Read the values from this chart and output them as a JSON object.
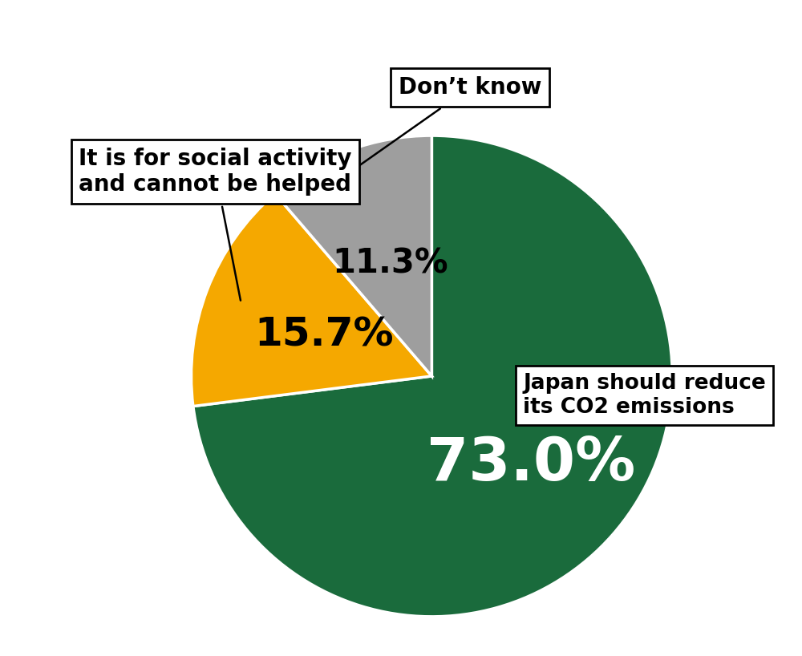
{
  "slices": [
    73.0,
    15.7,
    11.3
  ],
  "colors": [
    "#1a6b3c",
    "#f5a800",
    "#9e9e9e"
  ],
  "pct_labels": [
    "73.0%",
    "15.7%",
    "11.3%"
  ],
  "pct_colors": [
    "#ffffff",
    "#000000",
    "#000000"
  ],
  "pct_fontsizes": [
    54,
    36,
    30
  ],
  "box_label_green": "Japan should reduce\nits CO2 emissions",
  "box_label_orange": "It is for social activity\nand cannot be helped",
  "box_label_gray": "Don’t know",
  "background_color": "#ffffff",
  "figsize": [
    10.0,
    8.18
  ],
  "dpi": 100
}
